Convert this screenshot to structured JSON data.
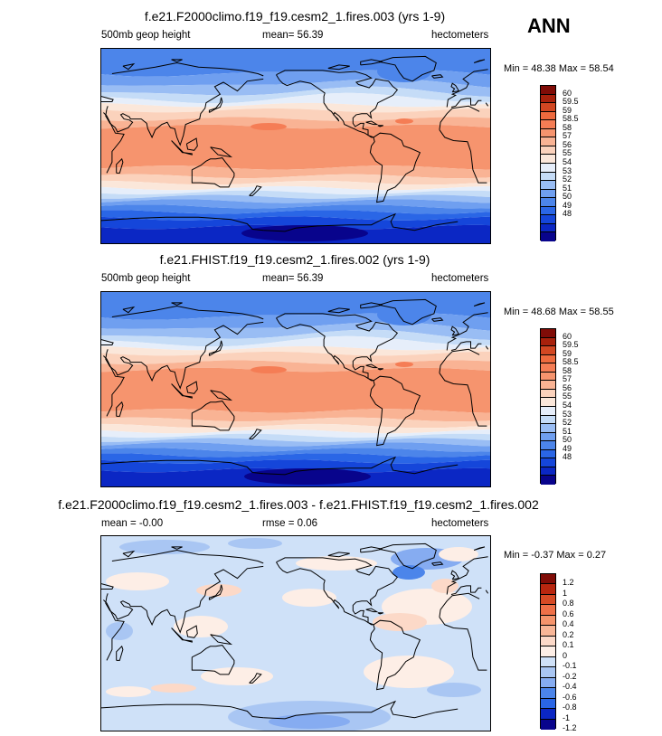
{
  "season": "ANN",
  "colors": {
    "abs_scale": [
      "#08048c",
      "#0b27c4",
      "#1546da",
      "#2a66e6",
      "#4c85ea",
      "#6f9ff0",
      "#99bdf4",
      "#c5dcf7",
      "#e6eefa",
      "#fbe7da",
      "#fbd2bc",
      "#f9b394",
      "#f6946e",
      "#f57d55",
      "#ee6a3e",
      "#d24722",
      "#a8210c",
      "#800c07"
    ],
    "diff_scale": [
      "#08048c",
      "#0b27c4",
      "#2a66e6",
      "#4c85ea",
      "#86acf1",
      "#a9c6f3",
      "#cfe1f8",
      "#fdeee6",
      "#fcd9c8",
      "#f8b697",
      "#f5946c",
      "#ef7048",
      "#d64a25",
      "#b8260f",
      "#800c07"
    ]
  },
  "panels": [
    {
      "title": "f.e21.F2000climo.f19_f19.cesm2_1.fires.003 (yrs 1-9)",
      "left_label": "500mb geop height",
      "mean_label": "mean=  56.39",
      "units": "hectometers",
      "minmax": "Min = 48.38 Max = 58.54",
      "kind": "abs",
      "variant": 0
    },
    {
      "title": "f.e21.FHIST.f19_f19.cesm2_1.fires.002 (yrs 1-9)",
      "left_label": "500mb geop height",
      "mean_label": "mean=  56.39",
      "units": "hectometers",
      "minmax": "Min = 48.68 Max = 58.55",
      "kind": "abs",
      "variant": 1
    },
    {
      "title": "f.e21.F2000climo.f19_f19.cesm2_1.fires.003 - f.e21.FHIST.f19_f19.cesm2_1.fires.002",
      "left_label": "mean =  -0.00",
      "mean_label": "rmse =   0.06",
      "units": "hectometers",
      "minmax": "Min =  -0.37 Max =   0.27",
      "kind": "diff",
      "variant": 2
    }
  ],
  "abs_ticks": [
    "60",
    "59.5",
    "59",
    "58.5",
    "58",
    "57",
    "56",
    "55",
    "54",
    "53",
    "52",
    "51",
    "50",
    "49",
    "48"
  ],
  "diff_ticks": [
    "1.2",
    "1",
    "0.8",
    "0.6",
    "0.4",
    "0.2",
    "0.1",
    "0",
    "-0.1",
    "-0.2",
    "-0.4",
    "-0.6",
    "-0.8",
    "-1",
    "-1.2"
  ]
}
